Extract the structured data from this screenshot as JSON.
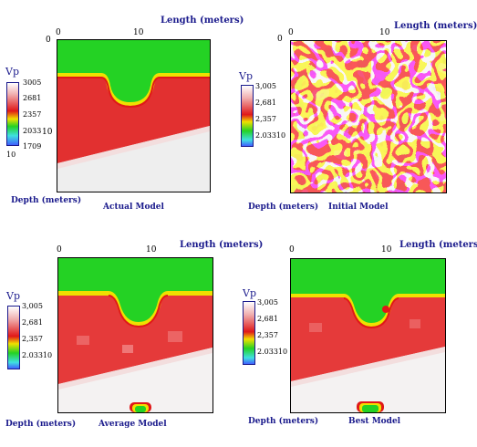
{
  "colors": {
    "green": "#24d224",
    "red": "#e01818",
    "light": "#eeeeee",
    "yellow": "#f0e000",
    "pink": "#f5c8c8",
    "cyan": "#40e0e0",
    "label_blue": "#1a1a8c"
  },
  "panels": {
    "actual": {
      "length_label": "Length (meters)",
      "xtick0": "0",
      "xtick10": "10",
      "ytick0": "0",
      "ytick10": "10",
      "vp": "Vp",
      "scale": [
        "3005",
        "2681",
        "2357",
        "2033",
        "1709"
      ],
      "scale_extra": "10",
      "depth_label": "Depth (meters)",
      "caption": "Actual Model"
    },
    "initial": {
      "length_label": "Length (meters)",
      "xtick0": "0",
      "xtick10": "10",
      "ytick0": "0",
      "vp": "Vp",
      "scale": [
        "3,005",
        "2,681",
        "2,357",
        "2.03310"
      ],
      "depth_label": "Depth (meters)",
      "caption": "Initial Model"
    },
    "average": {
      "length_label": "Length (meters)",
      "xtick0": "0",
      "xtick10": "10",
      "vp": "Vp",
      "scale": [
        "3,005",
        "2,681",
        "2,357",
        "2.03310"
      ],
      "depth_label": "Depth (meters)",
      "caption": "Average Model"
    },
    "best": {
      "length_label": "Length (meters)",
      "xtick0": "0",
      "xtick10": "10",
      "vp": "Vp",
      "scale": [
        "3,005",
        "2,681",
        "2,357",
        "2.03310"
      ],
      "depth_label": "Depth (meters)",
      "caption": "Best Model"
    }
  }
}
